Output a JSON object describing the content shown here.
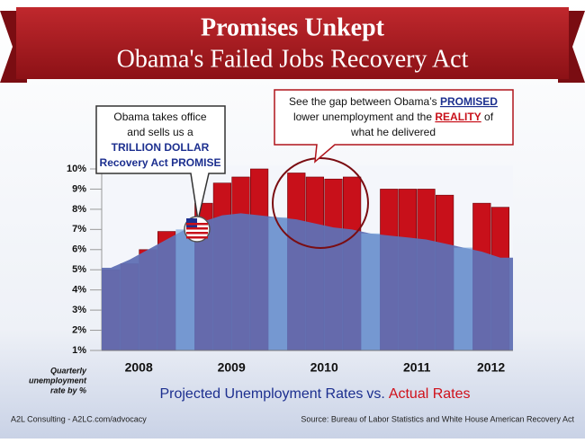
{
  "chart_data": {
    "type": "bar",
    "title": "Promises Unkept",
    "subtitle": "Obama's Failed Jobs Recovery Act",
    "callout_left": [
      "Obama takes office",
      "and sells us a",
      "TRILLION DOLLAR",
      "Recovery Act PROMISE"
    ],
    "callout_right": [
      [
        "See the gap between Obama’s ",
        "PROMISED"
      ],
      [
        "lower unemployment and the ",
        "REALITY",
        " of"
      ],
      [
        "what he delivered"
      ]
    ],
    "y_axis_label": [
      "Quarterly",
      "unemployment",
      "rate by %"
    ],
    "year_labels": [
      "2008",
      "2009",
      "2010",
      "2011",
      "2012"
    ],
    "legend_joiner": "vs.",
    "footer_left": "A2L Consulting - A2LC.com/advocacy",
    "footer_right": "Source: Bureau of Labor Statistics and White House American Recovery Act",
    "categories": [
      null,
      null,
      null,
      null,
      null,
      null,
      null,
      null,
      null,
      null,
      null,
      null,
      null,
      null,
      null,
      null,
      null,
      null,
      null,
      null,
      null,
      null
    ],
    "series": [
      {
        "name": "Projected Unemployment Rates",
        "type": "area",
        "color": "#6070b4",
        "values": [
          5.1,
          5.5,
          6.0,
          6.5,
          7.0,
          7.4,
          7.7,
          7.8,
          7.7,
          7.6,
          7.5,
          7.3,
          7.1,
          7.0,
          6.8,
          6.7,
          6.6,
          6.5,
          6.3,
          6.1,
          5.9,
          5.6
        ]
      },
      {
        "name": "Actual Rates",
        "type": "bar",
        "color": "#c8101a",
        "values": [
          5.0,
          5.3,
          6.0,
          6.9,
          null,
          8.3,
          9.3,
          9.6,
          10.0,
          null,
          9.8,
          9.6,
          9.5,
          9.6,
          null,
          9.0,
          9.0,
          9.0,
          8.7,
          null,
          8.3,
          8.1
        ]
      }
    ],
    "ylim": [
      1,
      10
    ],
    "yticks": [
      {
        "value": 1,
        "label": "1%"
      },
      {
        "value": 2,
        "label": "2%"
      },
      {
        "value": 3,
        "label": "3%"
      },
      {
        "value": 4,
        "label": "4%"
      },
      {
        "value": 5,
        "label": "5%"
      },
      {
        "value": 6,
        "label": "6%"
      },
      {
        "value": 7,
        "label": "7%"
      },
      {
        "value": 8,
        "label": "8%"
      },
      {
        "value": 9,
        "label": "9%"
      },
      {
        "value": 10,
        "label": "10%"
      }
    ]
  }
}
